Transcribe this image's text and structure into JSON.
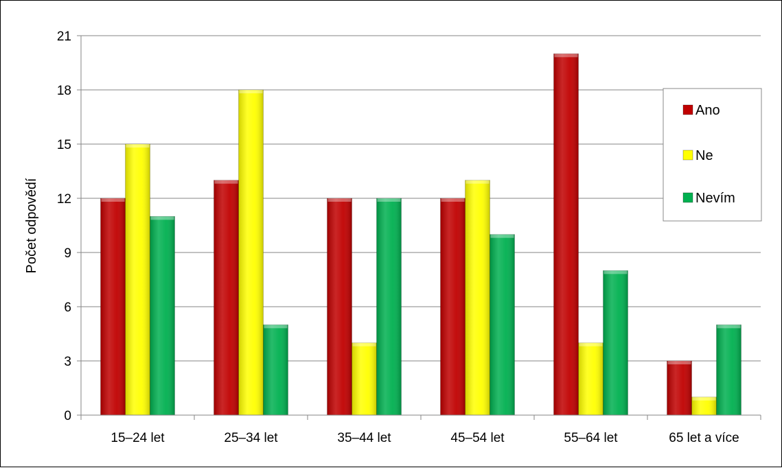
{
  "chart_data": {
    "type": "bar",
    "title": "",
    "xlabel": "",
    "ylabel": "Počet odpovědí",
    "ylim": [
      0,
      21
    ],
    "yticks": [
      0,
      3,
      6,
      9,
      12,
      15,
      18,
      21
    ],
    "grid": true,
    "legend_position": "right",
    "categories": [
      "15–24 let",
      "25–34 let",
      "35–44 let",
      "45–54 let",
      "55–64 let",
      "65 let a více"
    ],
    "series": [
      {
        "name": "Ano",
        "color": "#c00000",
        "values": [
          12,
          13,
          12,
          12,
          20,
          3
        ]
      },
      {
        "name": "Ne",
        "color": "#ffff00",
        "values": [
          15,
          18,
          4,
          13,
          4,
          1
        ]
      },
      {
        "name": "Nevím",
        "color": "#00b050",
        "values": [
          11,
          5,
          12,
          10,
          8,
          5
        ]
      }
    ]
  }
}
